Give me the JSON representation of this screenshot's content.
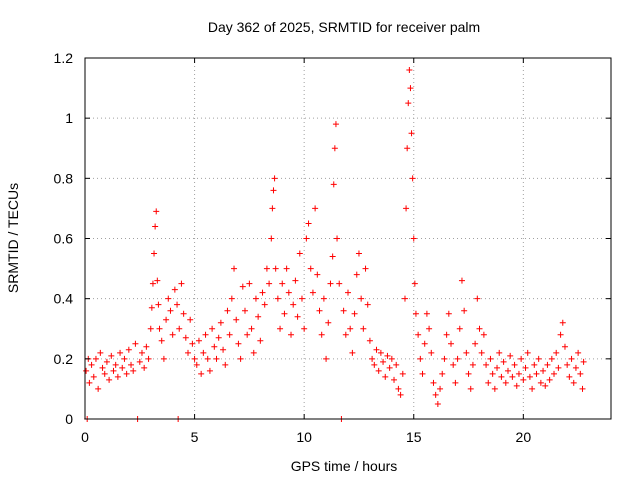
{
  "chart_data": {
    "type": "scatter",
    "title": "Day 362 of 2025, SRMTID for receiver palm",
    "xlabel": "GPS time / hours",
    "ylabel": "SRMTID / TECUs",
    "xlim": [
      0,
      24
    ],
    "ylim": [
      0,
      1.2
    ],
    "x_ticks": [
      0,
      5,
      10,
      15,
      20
    ],
    "x_tick_labels": [
      "0",
      "5",
      "10",
      "15",
      "20"
    ],
    "y_ticks": [
      0,
      0.2,
      0.4,
      0.6,
      0.8,
      1.0,
      1.2
    ],
    "y_tick_labels": [
      "0",
      "0.2",
      "0.4",
      "0.6",
      "0.8",
      "1",
      "1.2"
    ],
    "grid": true,
    "marker": "+",
    "color": "#ff0000",
    "series": [
      {
        "name": "palm",
        "points": [
          [
            0.05,
            0.16
          ],
          [
            0.1,
            0.0
          ],
          [
            0.15,
            0.2
          ],
          [
            0.2,
            0.12
          ],
          [
            0.3,
            0.18
          ],
          [
            0.4,
            0.14
          ],
          [
            0.5,
            0.2
          ],
          [
            0.6,
            0.1
          ],
          [
            0.7,
            0.22
          ],
          [
            0.8,
            0.17
          ],
          [
            0.9,
            0.15
          ],
          [
            1.0,
            0.19
          ],
          [
            1.1,
            0.13
          ],
          [
            1.2,
            0.21
          ],
          [
            1.3,
            0.16
          ],
          [
            1.4,
            0.18
          ],
          [
            1.5,
            0.14
          ],
          [
            1.6,
            0.22
          ],
          [
            1.7,
            0.17
          ],
          [
            1.8,
            0.2
          ],
          [
            1.9,
            0.15
          ],
          [
            2.0,
            0.23
          ],
          [
            2.1,
            0.18
          ],
          [
            2.2,
            0.16
          ],
          [
            2.3,
            0.25
          ],
          [
            2.4,
            0.0
          ],
          [
            2.5,
            0.19
          ],
          [
            2.6,
            0.22
          ],
          [
            2.7,
            0.17
          ],
          [
            2.8,
            0.24
          ],
          [
            2.9,
            0.2
          ],
          [
            3.0,
            0.3
          ],
          [
            3.05,
            0.37
          ],
          [
            3.1,
            0.45
          ],
          [
            3.15,
            0.55
          ],
          [
            3.2,
            0.64
          ],
          [
            3.25,
            0.69
          ],
          [
            3.3,
            0.46
          ],
          [
            3.35,
            0.38
          ],
          [
            3.4,
            0.3
          ],
          [
            3.5,
            0.26
          ],
          [
            3.6,
            0.2
          ],
          [
            3.7,
            0.33
          ],
          [
            3.8,
            0.4
          ],
          [
            3.9,
            0.36
          ],
          [
            4.0,
            0.28
          ],
          [
            4.1,
            0.43
          ],
          [
            4.2,
            0.38
          ],
          [
            4.25,
            0.0
          ],
          [
            4.3,
            0.3
          ],
          [
            4.4,
            0.45
          ],
          [
            4.5,
            0.35
          ],
          [
            4.6,
            0.27
          ],
          [
            4.7,
            0.22
          ],
          [
            4.8,
            0.33
          ],
          [
            4.9,
            0.25
          ],
          [
            5.0,
            0.2
          ],
          [
            5.1,
            0.18
          ],
          [
            5.2,
            0.26
          ],
          [
            5.3,
            0.15
          ],
          [
            5.4,
            0.22
          ],
          [
            5.5,
            0.28
          ],
          [
            5.6,
            0.2
          ],
          [
            5.7,
            0.16
          ],
          [
            5.8,
            0.3
          ],
          [
            5.9,
            0.24
          ],
          [
            6.0,
            0.2
          ],
          [
            6.1,
            0.27
          ],
          [
            6.2,
            0.32
          ],
          [
            6.3,
            0.23
          ],
          [
            6.4,
            0.18
          ],
          [
            6.5,
            0.36
          ],
          [
            6.6,
            0.28
          ],
          [
            6.7,
            0.4
          ],
          [
            6.8,
            0.5
          ],
          [
            6.9,
            0.33
          ],
          [
            7.0,
            0.25
          ],
          [
            7.1,
            0.2
          ],
          [
            7.2,
            0.44
          ],
          [
            7.3,
            0.36
          ],
          [
            7.4,
            0.28
          ],
          [
            7.5,
            0.45
          ],
          [
            7.6,
            0.3
          ],
          [
            7.7,
            0.22
          ],
          [
            7.8,
            0.4
          ],
          [
            7.9,
            0.34
          ],
          [
            8.0,
            0.26
          ],
          [
            8.1,
            0.42
          ],
          [
            8.2,
            0.38
          ],
          [
            8.3,
            0.5
          ],
          [
            8.4,
            0.45
          ],
          [
            8.5,
            0.6
          ],
          [
            8.55,
            0.7
          ],
          [
            8.6,
            0.76
          ],
          [
            8.65,
            0.8
          ],
          [
            8.7,
            0.5
          ],
          [
            8.8,
            0.4
          ],
          [
            8.9,
            0.3
          ],
          [
            9.0,
            0.45
          ],
          [
            9.1,
            0.35
          ],
          [
            9.2,
            0.5
          ],
          [
            9.3,
            0.42
          ],
          [
            9.4,
            0.28
          ],
          [
            9.5,
            0.38
          ],
          [
            9.6,
            0.46
          ],
          [
            9.7,
            0.34
          ],
          [
            9.8,
            0.55
          ],
          [
            9.9,
            0.4
          ],
          [
            10.0,
            0.3
          ],
          [
            10.1,
            0.6
          ],
          [
            10.2,
            0.65
          ],
          [
            10.3,
            0.5
          ],
          [
            10.4,
            0.42
          ],
          [
            10.5,
            0.7
          ],
          [
            10.6,
            0.48
          ],
          [
            10.7,
            0.36
          ],
          [
            10.8,
            0.28
          ],
          [
            10.9,
            0.4
          ],
          [
            11.0,
            0.2
          ],
          [
            11.1,
            0.32
          ],
          [
            11.2,
            0.45
          ],
          [
            11.3,
            0.54
          ],
          [
            11.35,
            0.78
          ],
          [
            11.4,
            0.9
          ],
          [
            11.45,
            0.98
          ],
          [
            11.5,
            0.6
          ],
          [
            11.6,
            0.45
          ],
          [
            11.7,
            0.0
          ],
          [
            11.8,
            0.36
          ],
          [
            11.9,
            0.28
          ],
          [
            12.0,
            0.42
          ],
          [
            12.1,
            0.3
          ],
          [
            12.2,
            0.22
          ],
          [
            12.3,
            0.35
          ],
          [
            12.4,
            0.48
          ],
          [
            12.5,
            0.55
          ],
          [
            12.6,
            0.4
          ],
          [
            12.7,
            0.3
          ],
          [
            12.8,
            0.5
          ],
          [
            12.9,
            0.38
          ],
          [
            13.0,
            0.26
          ],
          [
            13.1,
            0.2
          ],
          [
            13.2,
            0.18
          ],
          [
            13.3,
            0.23
          ],
          [
            13.4,
            0.16
          ],
          [
            13.5,
            0.22
          ],
          [
            13.6,
            0.19
          ],
          [
            13.7,
            0.14
          ],
          [
            13.8,
            0.21
          ],
          [
            13.9,
            0.17
          ],
          [
            14.0,
            0.2
          ],
          [
            14.1,
            0.13
          ],
          [
            14.2,
            0.18
          ],
          [
            14.3,
            0.1
          ],
          [
            14.4,
            0.08
          ],
          [
            14.5,
            0.15
          ],
          [
            14.6,
            0.4
          ],
          [
            14.65,
            0.7
          ],
          [
            14.7,
            0.9
          ],
          [
            14.75,
            1.05
          ],
          [
            14.8,
            1.16
          ],
          [
            14.85,
            1.1
          ],
          [
            14.9,
            0.95
          ],
          [
            14.95,
            0.8
          ],
          [
            15.0,
            0.6
          ],
          [
            15.05,
            0.45
          ],
          [
            15.1,
            0.35
          ],
          [
            15.2,
            0.28
          ],
          [
            15.3,
            0.2
          ],
          [
            15.4,
            0.15
          ],
          [
            15.5,
            0.25
          ],
          [
            15.6,
            0.35
          ],
          [
            15.7,
            0.3
          ],
          [
            15.8,
            0.22
          ],
          [
            15.9,
            0.12
          ],
          [
            16.0,
            0.08
          ],
          [
            16.1,
            0.05
          ],
          [
            16.2,
            0.1
          ],
          [
            16.3,
            0.15
          ],
          [
            16.4,
            0.2
          ],
          [
            16.5,
            0.28
          ],
          [
            16.6,
            0.35
          ],
          [
            16.7,
            0.25
          ],
          [
            16.8,
            0.18
          ],
          [
            16.9,
            0.12
          ],
          [
            17.0,
            0.2
          ],
          [
            17.1,
            0.3
          ],
          [
            17.2,
            0.46
          ],
          [
            17.3,
            0.36
          ],
          [
            17.4,
            0.22
          ],
          [
            17.5,
            0.15
          ],
          [
            17.6,
            0.1
          ],
          [
            17.7,
            0.18
          ],
          [
            17.8,
            0.25
          ],
          [
            17.9,
            0.4
          ],
          [
            18.0,
            0.3
          ],
          [
            18.1,
            0.22
          ],
          [
            18.2,
            0.28
          ],
          [
            18.3,
            0.18
          ],
          [
            18.4,
            0.12
          ],
          [
            18.5,
            0.2
          ],
          [
            18.6,
            0.15
          ],
          [
            18.7,
            0.1
          ],
          [
            18.8,
            0.17
          ],
          [
            18.9,
            0.22
          ],
          [
            19.0,
            0.14
          ],
          [
            19.1,
            0.19
          ],
          [
            19.2,
            0.12
          ],
          [
            19.3,
            0.16
          ],
          [
            19.4,
            0.21
          ],
          [
            19.5,
            0.14
          ],
          [
            19.6,
            0.18
          ],
          [
            19.7,
            0.11
          ],
          [
            19.8,
            0.15
          ],
          [
            19.9,
            0.2
          ],
          [
            20.0,
            0.13
          ],
          [
            20.1,
            0.17
          ],
          [
            20.2,
            0.22
          ],
          [
            20.3,
            0.14
          ],
          [
            20.4,
            0.1
          ],
          [
            20.5,
            0.18
          ],
          [
            20.6,
            0.15
          ],
          [
            20.7,
            0.2
          ],
          [
            20.8,
            0.12
          ],
          [
            20.9,
            0.16
          ],
          [
            21.0,
            0.11
          ],
          [
            21.1,
            0.18
          ],
          [
            21.2,
            0.13
          ],
          [
            21.3,
            0.2
          ],
          [
            21.4,
            0.15
          ],
          [
            21.5,
            0.22
          ],
          [
            21.6,
            0.17
          ],
          [
            21.7,
            0.28
          ],
          [
            21.8,
            0.32
          ],
          [
            21.9,
            0.24
          ],
          [
            22.0,
            0.18
          ],
          [
            22.1,
            0.14
          ],
          [
            22.2,
            0.2
          ],
          [
            22.3,
            0.12
          ],
          [
            22.4,
            0.17
          ],
          [
            22.5,
            0.22
          ],
          [
            22.6,
            0.15
          ],
          [
            22.7,
            0.1
          ],
          [
            22.75,
            0.19
          ]
        ]
      }
    ]
  }
}
